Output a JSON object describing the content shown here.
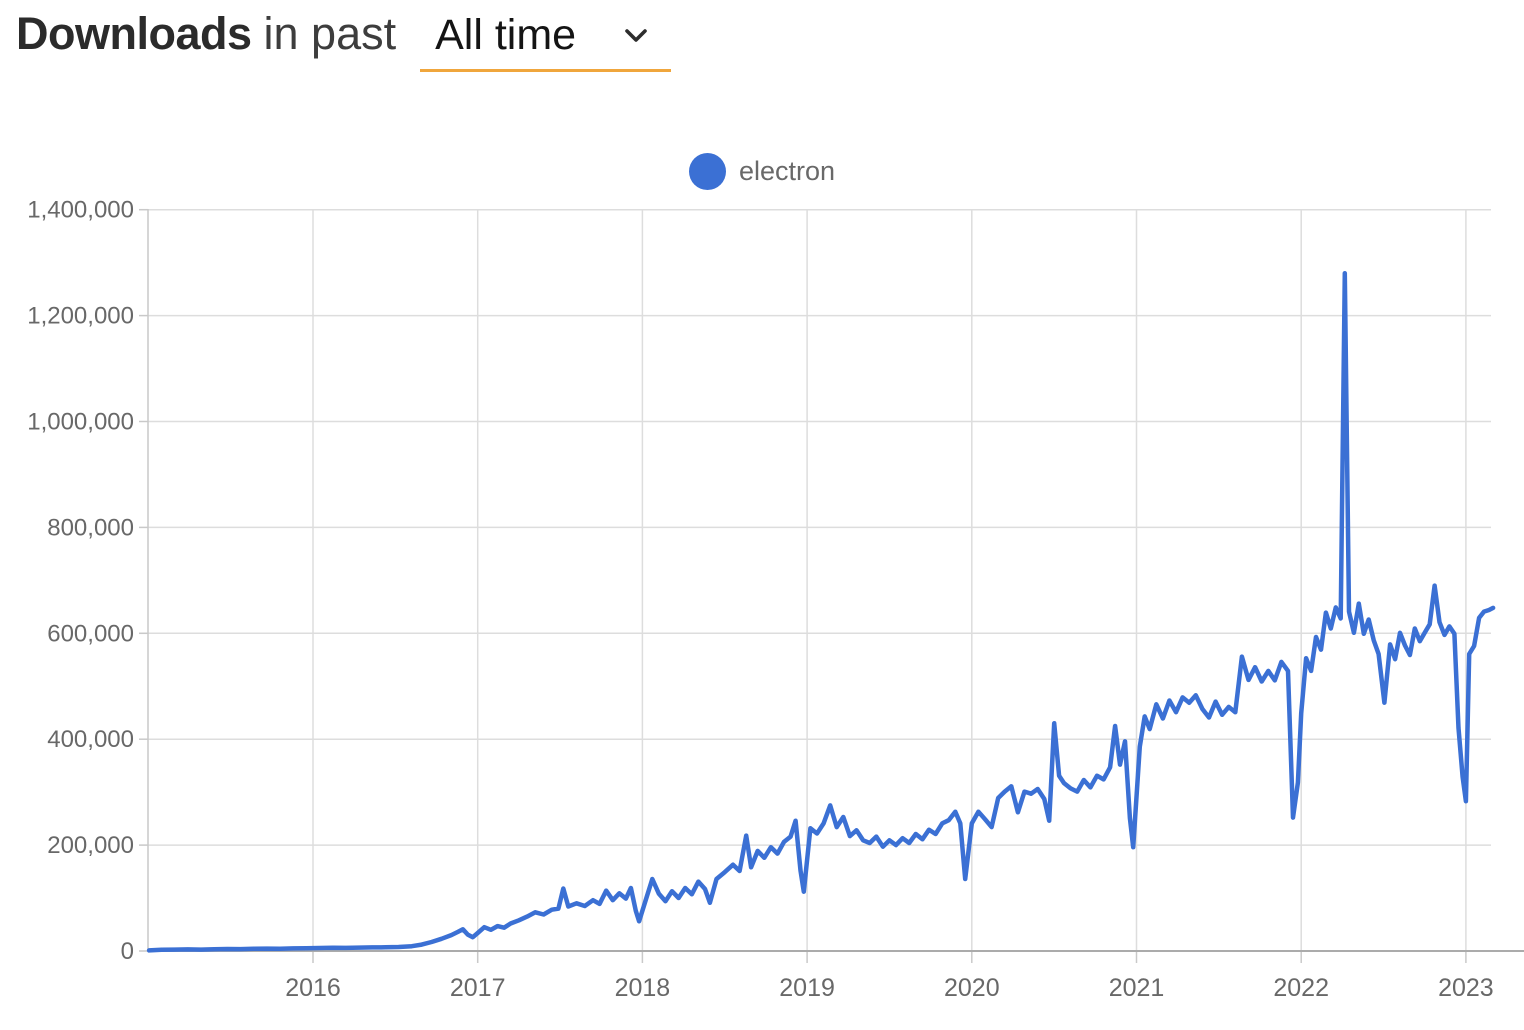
{
  "header": {
    "title_bold": "Downloads",
    "title_rest": "in past",
    "range_selector": {
      "value": "All time",
      "underline_color": "#f0a63c"
    }
  },
  "legend": {
    "series_label": "electron",
    "marker_color": "#3b70d4"
  },
  "colors": {
    "line": "#3b70d4",
    "grid": "#dddddd",
    "axis_zero_line": "#ababab",
    "axis_left_line": "#c9c9c9",
    "tick": "#c9c9c9",
    "tick_label": "#686868"
  },
  "chart_data": {
    "type": "line",
    "title": "Downloads in past All time",
    "xlabel": "",
    "ylabel": "",
    "grid": true,
    "legend_position": "top-center",
    "xlim": [
      2015.0,
      2023.2
    ],
    "ylim": [
      0,
      1400000
    ],
    "x_ticks": [
      {
        "year": 2016,
        "label": "2016"
      },
      {
        "year": 2017,
        "label": "2017"
      },
      {
        "year": 2018,
        "label": "2018"
      },
      {
        "year": 2019,
        "label": "2019"
      },
      {
        "year": 2020,
        "label": "2020"
      },
      {
        "year": 2021,
        "label": "2021"
      },
      {
        "year": 2022,
        "label": "2022"
      },
      {
        "year": 2023,
        "label": "2023"
      }
    ],
    "y_ticks": [
      {
        "value": 0,
        "label": "0"
      },
      {
        "value": 200000,
        "label": "200,000"
      },
      {
        "value": 400000,
        "label": "400,000"
      },
      {
        "value": 600000,
        "label": "600,000"
      },
      {
        "value": 800000,
        "label": "800,000"
      },
      {
        "value": 1000000,
        "label": "1,000,000"
      },
      {
        "value": 1200000,
        "label": "1,200,000"
      },
      {
        "value": 1400000,
        "label": "1,400,000"
      }
    ],
    "series": [
      {
        "name": "electron",
        "color": "#3b70d4",
        "points": [
          [
            2015.005,
            1200
          ],
          [
            2015.08,
            2200
          ],
          [
            2015.16,
            2600
          ],
          [
            2015.24,
            3000
          ],
          [
            2015.32,
            2700
          ],
          [
            2015.4,
            3400
          ],
          [
            2015.48,
            3800
          ],
          [
            2015.56,
            3600
          ],
          [
            2015.64,
            4200
          ],
          [
            2015.72,
            4600
          ],
          [
            2015.8,
            4400
          ],
          [
            2015.88,
            5000
          ],
          [
            2015.96,
            5300
          ],
          [
            2016.04,
            5600
          ],
          [
            2016.12,
            6000
          ],
          [
            2016.2,
            5800
          ],
          [
            2016.28,
            6400
          ],
          [
            2016.36,
            6800
          ],
          [
            2016.44,
            7000
          ],
          [
            2016.52,
            7600
          ],
          [
            2016.6,
            9000
          ],
          [
            2016.66,
            12000
          ],
          [
            2016.72,
            17000
          ],
          [
            2016.78,
            23000
          ],
          [
            2016.84,
            30000
          ],
          [
            2016.88,
            36000
          ],
          [
            2016.91,
            41000
          ],
          [
            2016.94,
            31000
          ],
          [
            2016.97,
            26000
          ],
          [
            2017.0,
            34000
          ],
          [
            2017.04,
            45000
          ],
          [
            2017.08,
            40000
          ],
          [
            2017.12,
            47000
          ],
          [
            2017.16,
            44000
          ],
          [
            2017.2,
            52000
          ],
          [
            2017.25,
            58000
          ],
          [
            2017.3,
            65000
          ],
          [
            2017.35,
            73000
          ],
          [
            2017.4,
            69000
          ],
          [
            2017.45,
            78000
          ],
          [
            2017.49,
            80000
          ],
          [
            2017.52,
            118000
          ],
          [
            2017.55,
            84000
          ],
          [
            2017.6,
            90000
          ],
          [
            2017.65,
            85000
          ],
          [
            2017.7,
            96000
          ],
          [
            2017.74,
            89000
          ],
          [
            2017.78,
            114000
          ],
          [
            2017.82,
            96000
          ],
          [
            2017.86,
            109000
          ],
          [
            2017.9,
            99000
          ],
          [
            2017.93,
            119000
          ],
          [
            2017.96,
            76000
          ],
          [
            2017.98,
            56000
          ],
          [
            2018.02,
            96000
          ],
          [
            2018.06,
            136000
          ],
          [
            2018.1,
            108000
          ],
          [
            2018.14,
            94000
          ],
          [
            2018.18,
            113000
          ],
          [
            2018.22,
            100000
          ],
          [
            2018.26,
            119000
          ],
          [
            2018.3,
            107000
          ],
          [
            2018.34,
            131000
          ],
          [
            2018.38,
            117000
          ],
          [
            2018.41,
            91000
          ],
          [
            2018.45,
            136000
          ],
          [
            2018.5,
            149000
          ],
          [
            2018.55,
            163000
          ],
          [
            2018.59,
            151000
          ],
          [
            2018.63,
            218000
          ],
          [
            2018.66,
            158000
          ],
          [
            2018.7,
            189000
          ],
          [
            2018.74,
            176000
          ],
          [
            2018.78,
            196000
          ],
          [
            2018.82,
            184000
          ],
          [
            2018.86,
            206000
          ],
          [
            2018.9,
            216000
          ],
          [
            2018.93,
            246000
          ],
          [
            2018.96,
            152000
          ],
          [
            2018.98,
            112000
          ],
          [
            2019.02,
            232000
          ],
          [
            2019.06,
            222000
          ],
          [
            2019.1,
            241000
          ],
          [
            2019.14,
            275000
          ],
          [
            2019.18,
            234000
          ],
          [
            2019.22,
            253000
          ],
          [
            2019.26,
            217000
          ],
          [
            2019.3,
            228000
          ],
          [
            2019.34,
            209000
          ],
          [
            2019.38,
            204000
          ],
          [
            2019.42,
            216000
          ],
          [
            2019.46,
            197000
          ],
          [
            2019.5,
            209000
          ],
          [
            2019.54,
            200000
          ],
          [
            2019.58,
            213000
          ],
          [
            2019.62,
            204000
          ],
          [
            2019.66,
            221000
          ],
          [
            2019.7,
            211000
          ],
          [
            2019.74,
            229000
          ],
          [
            2019.78,
            221000
          ],
          [
            2019.82,
            241000
          ],
          [
            2019.86,
            247000
          ],
          [
            2019.9,
            263000
          ],
          [
            2019.93,
            241000
          ],
          [
            2019.96,
            136000
          ],
          [
            2020.0,
            241000
          ],
          [
            2020.04,
            263000
          ],
          [
            2020.08,
            249000
          ],
          [
            2020.12,
            234000
          ],
          [
            2020.16,
            289000
          ],
          [
            2020.2,
            301000
          ],
          [
            2020.24,
            311000
          ],
          [
            2020.28,
            262000
          ],
          [
            2020.32,
            301000
          ],
          [
            2020.36,
            297000
          ],
          [
            2020.4,
            306000
          ],
          [
            2020.44,
            287000
          ],
          [
            2020.47,
            246000
          ],
          [
            2020.5,
            430000
          ],
          [
            2020.53,
            331000
          ],
          [
            2020.56,
            317000
          ],
          [
            2020.6,
            307000
          ],
          [
            2020.64,
            301000
          ],
          [
            2020.68,
            323000
          ],
          [
            2020.72,
            309000
          ],
          [
            2020.76,
            331000
          ],
          [
            2020.8,
            324000
          ],
          [
            2020.84,
            347000
          ],
          [
            2020.87,
            425000
          ],
          [
            2020.9,
            352000
          ],
          [
            2020.93,
            396000
          ],
          [
            2020.96,
            251000
          ],
          [
            2020.98,
            196000
          ],
          [
            2021.02,
            386000
          ],
          [
            2021.05,
            443000
          ],
          [
            2021.08,
            419000
          ],
          [
            2021.12,
            466000
          ],
          [
            2021.16,
            439000
          ],
          [
            2021.2,
            473000
          ],
          [
            2021.24,
            451000
          ],
          [
            2021.28,
            479000
          ],
          [
            2021.32,
            469000
          ],
          [
            2021.36,
            483000
          ],
          [
            2021.4,
            457000
          ],
          [
            2021.44,
            441000
          ],
          [
            2021.48,
            471000
          ],
          [
            2021.52,
            446000
          ],
          [
            2021.56,
            461000
          ],
          [
            2021.6,
            451000
          ],
          [
            2021.64,
            556000
          ],
          [
            2021.68,
            512000
          ],
          [
            2021.72,
            536000
          ],
          [
            2021.76,
            509000
          ],
          [
            2021.8,
            529000
          ],
          [
            2021.84,
            511000
          ],
          [
            2021.88,
            546000
          ],
          [
            2021.92,
            529000
          ],
          [
            2021.95,
            252000
          ],
          [
            2021.98,
            318000
          ],
          [
            2022.0,
            449000
          ],
          [
            2022.03,
            553000
          ],
          [
            2022.06,
            529000
          ],
          [
            2022.09,
            593000
          ],
          [
            2022.12,
            569000
          ],
          [
            2022.15,
            639000
          ],
          [
            2022.18,
            609000
          ],
          [
            2022.21,
            649000
          ],
          [
            2022.24,
            628000
          ],
          [
            2022.265,
            1280000
          ],
          [
            2022.29,
            641000
          ],
          [
            2022.32,
            601000
          ],
          [
            2022.35,
            656000
          ],
          [
            2022.38,
            599000
          ],
          [
            2022.41,
            626000
          ],
          [
            2022.44,
            587000
          ],
          [
            2022.47,
            561000
          ],
          [
            2022.505,
            469000
          ],
          [
            2022.54,
            579000
          ],
          [
            2022.57,
            551000
          ],
          [
            2022.6,
            601000
          ],
          [
            2022.63,
            577000
          ],
          [
            2022.66,
            559000
          ],
          [
            2022.69,
            609000
          ],
          [
            2022.72,
            585000
          ],
          [
            2022.75,
            601000
          ],
          [
            2022.78,
            617000
          ],
          [
            2022.81,
            690000
          ],
          [
            2022.84,
            621000
          ],
          [
            2022.87,
            597000
          ],
          [
            2022.9,
            613000
          ],
          [
            2022.93,
            599000
          ],
          [
            2022.955,
            421000
          ],
          [
            2022.98,
            329000
          ],
          [
            2023.0,
            283000
          ],
          [
            2023.02,
            561000
          ],
          [
            2023.05,
            576000
          ],
          [
            2023.08,
            629000
          ],
          [
            2023.11,
            641000
          ],
          [
            2023.14,
            644000
          ],
          [
            2023.165,
            648000
          ]
        ]
      }
    ]
  }
}
